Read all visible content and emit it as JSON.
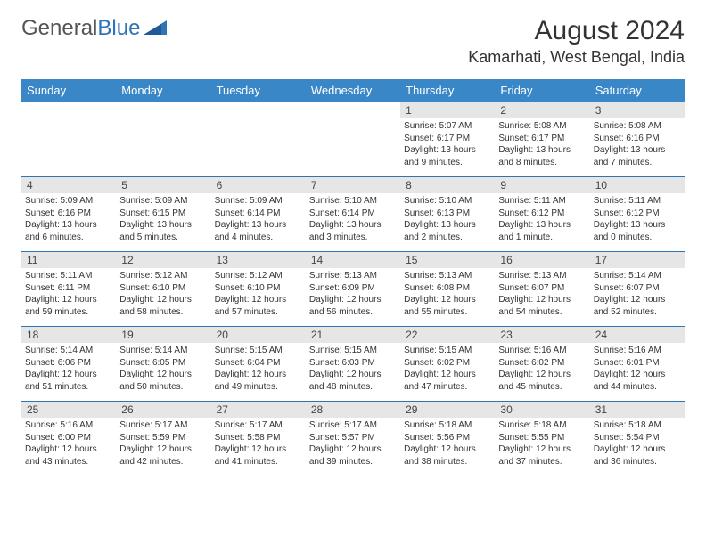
{
  "logo": {
    "part1": "General",
    "part2": "Blue"
  },
  "title": "August 2024",
  "location": "Kamarhati, West Bengal, India",
  "colors": {
    "header_bg": "#3a87c8",
    "border": "#2e75b6",
    "daynum_bg": "#e6e6e6",
    "text": "#333333"
  },
  "daysOfWeek": [
    "Sunday",
    "Monday",
    "Tuesday",
    "Wednesday",
    "Thursday",
    "Friday",
    "Saturday"
  ],
  "firstWeekday": 4,
  "daysInMonth": 31,
  "labels": {
    "sunrise": "Sunrise: ",
    "sunset": "Sunset: ",
    "daylight": "Daylight: "
  },
  "days": {
    "1": {
      "sunrise": "5:07 AM",
      "sunset": "6:17 PM",
      "daylight": "13 hours and 9 minutes."
    },
    "2": {
      "sunrise": "5:08 AM",
      "sunset": "6:17 PM",
      "daylight": "13 hours and 8 minutes."
    },
    "3": {
      "sunrise": "5:08 AM",
      "sunset": "6:16 PM",
      "daylight": "13 hours and 7 minutes."
    },
    "4": {
      "sunrise": "5:09 AM",
      "sunset": "6:16 PM",
      "daylight": "13 hours and 6 minutes."
    },
    "5": {
      "sunrise": "5:09 AM",
      "sunset": "6:15 PM",
      "daylight": "13 hours and 5 minutes."
    },
    "6": {
      "sunrise": "5:09 AM",
      "sunset": "6:14 PM",
      "daylight": "13 hours and 4 minutes."
    },
    "7": {
      "sunrise": "5:10 AM",
      "sunset": "6:14 PM",
      "daylight": "13 hours and 3 minutes."
    },
    "8": {
      "sunrise": "5:10 AM",
      "sunset": "6:13 PM",
      "daylight": "13 hours and 2 minutes."
    },
    "9": {
      "sunrise": "5:11 AM",
      "sunset": "6:12 PM",
      "daylight": "13 hours and 1 minute."
    },
    "10": {
      "sunrise": "5:11 AM",
      "sunset": "6:12 PM",
      "daylight": "13 hours and 0 minutes."
    },
    "11": {
      "sunrise": "5:11 AM",
      "sunset": "6:11 PM",
      "daylight": "12 hours and 59 minutes."
    },
    "12": {
      "sunrise": "5:12 AM",
      "sunset": "6:10 PM",
      "daylight": "12 hours and 58 minutes."
    },
    "13": {
      "sunrise": "5:12 AM",
      "sunset": "6:10 PM",
      "daylight": "12 hours and 57 minutes."
    },
    "14": {
      "sunrise": "5:13 AM",
      "sunset": "6:09 PM",
      "daylight": "12 hours and 56 minutes."
    },
    "15": {
      "sunrise": "5:13 AM",
      "sunset": "6:08 PM",
      "daylight": "12 hours and 55 minutes."
    },
    "16": {
      "sunrise": "5:13 AM",
      "sunset": "6:07 PM",
      "daylight": "12 hours and 54 minutes."
    },
    "17": {
      "sunrise": "5:14 AM",
      "sunset": "6:07 PM",
      "daylight": "12 hours and 52 minutes."
    },
    "18": {
      "sunrise": "5:14 AM",
      "sunset": "6:06 PM",
      "daylight": "12 hours and 51 minutes."
    },
    "19": {
      "sunrise": "5:14 AM",
      "sunset": "6:05 PM",
      "daylight": "12 hours and 50 minutes."
    },
    "20": {
      "sunrise": "5:15 AM",
      "sunset": "6:04 PM",
      "daylight": "12 hours and 49 minutes."
    },
    "21": {
      "sunrise": "5:15 AM",
      "sunset": "6:03 PM",
      "daylight": "12 hours and 48 minutes."
    },
    "22": {
      "sunrise": "5:15 AM",
      "sunset": "6:02 PM",
      "daylight": "12 hours and 47 minutes."
    },
    "23": {
      "sunrise": "5:16 AM",
      "sunset": "6:02 PM",
      "daylight": "12 hours and 45 minutes."
    },
    "24": {
      "sunrise": "5:16 AM",
      "sunset": "6:01 PM",
      "daylight": "12 hours and 44 minutes."
    },
    "25": {
      "sunrise": "5:16 AM",
      "sunset": "6:00 PM",
      "daylight": "12 hours and 43 minutes."
    },
    "26": {
      "sunrise": "5:17 AM",
      "sunset": "5:59 PM",
      "daylight": "12 hours and 42 minutes."
    },
    "27": {
      "sunrise": "5:17 AM",
      "sunset": "5:58 PM",
      "daylight": "12 hours and 41 minutes."
    },
    "28": {
      "sunrise": "5:17 AM",
      "sunset": "5:57 PM",
      "daylight": "12 hours and 39 minutes."
    },
    "29": {
      "sunrise": "5:18 AM",
      "sunset": "5:56 PM",
      "daylight": "12 hours and 38 minutes."
    },
    "30": {
      "sunrise": "5:18 AM",
      "sunset": "5:55 PM",
      "daylight": "12 hours and 37 minutes."
    },
    "31": {
      "sunrise": "5:18 AM",
      "sunset": "5:54 PM",
      "daylight": "12 hours and 36 minutes."
    }
  }
}
